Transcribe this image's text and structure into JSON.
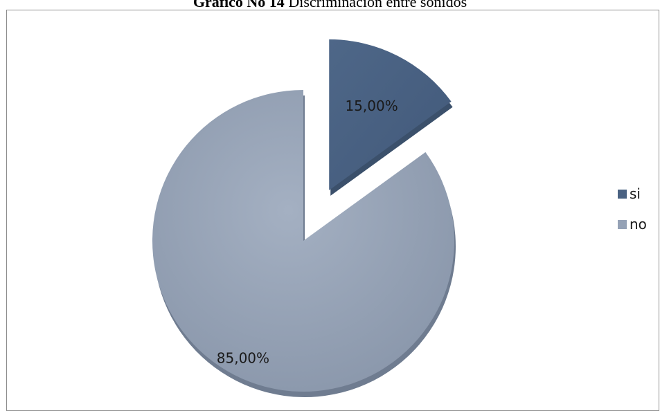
{
  "title": {
    "bold": "Gráfico No 14",
    "rest": " Discriminación entre sonidos"
  },
  "chart_data": {
    "type": "pie",
    "title": "Gráfico No 14 Discriminación entre sonidos",
    "exploded": "si",
    "legend_position": "right",
    "slices": [
      {
        "name": "si",
        "value": 15,
        "label": "15,00%",
        "color": "#4a6282",
        "shade": "#3b506b"
      },
      {
        "name": "no",
        "value": 85,
        "label": "85,00%",
        "color": "#95a2b6",
        "shade": "#6f7c90"
      }
    ]
  },
  "legend": {
    "items": [
      {
        "label": "si",
        "color": "#4a6282"
      },
      {
        "label": "no",
        "color": "#95a2b6"
      }
    ]
  }
}
